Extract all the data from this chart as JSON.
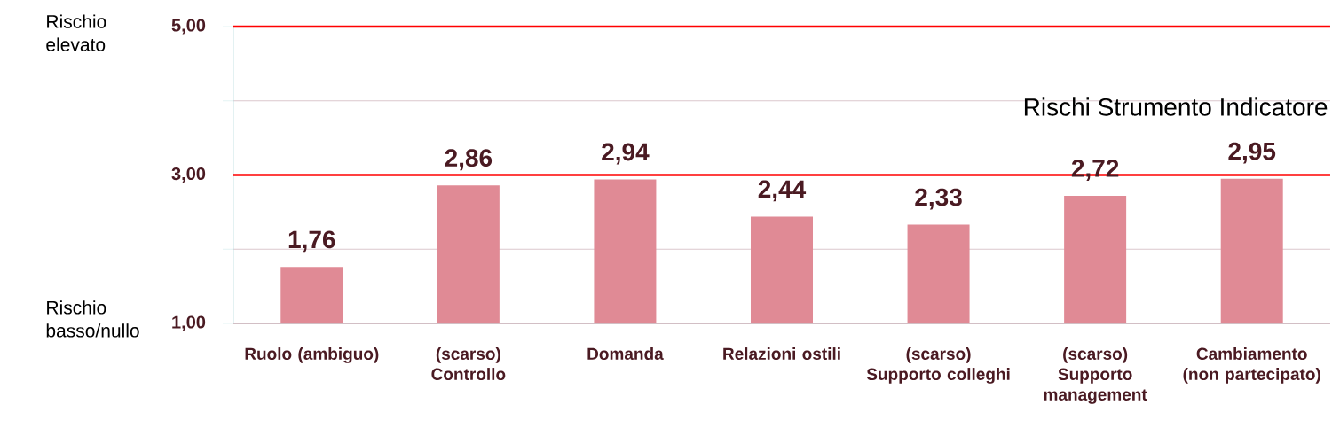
{
  "chart_data": {
    "type": "bar",
    "title": "Rischi Strumento Indicatore",
    "categories": [
      "Ruolo (ambiguo)",
      "(scarso) Controllo",
      "Domanda",
      "Relazioni ostili",
      "(scarso) Supporto colleghi",
      "(scarso) Supporto management",
      "Cambiamento (non partecipato)"
    ],
    "values": [
      1.76,
      2.86,
      2.94,
      2.44,
      2.33,
      2.72,
      2.95
    ],
    "value_labels": [
      "1,76",
      "2,86",
      "2,94",
      "2,44",
      "2,33",
      "2,72",
      "2,95"
    ],
    "color": "#e08a95",
    "ylim": [
      1,
      5
    ],
    "yticks": [
      {
        "value": 1,
        "label": "1,00"
      },
      {
        "value": 2,
        "label": null
      },
      {
        "value": 3,
        "label": "3,00"
      },
      {
        "value": 4,
        "label": null
      },
      {
        "value": 5,
        "label": "5,00"
      }
    ],
    "grid": "y",
    "ref_lines": [
      {
        "axis": "y",
        "value": 3,
        "color": "#ff0000"
      },
      {
        "axis": "y",
        "value": 5,
        "color": "#ff0000"
      }
    ],
    "annotations": [
      "Rischio elevato",
      "Rischio basso/nullo"
    ]
  }
}
